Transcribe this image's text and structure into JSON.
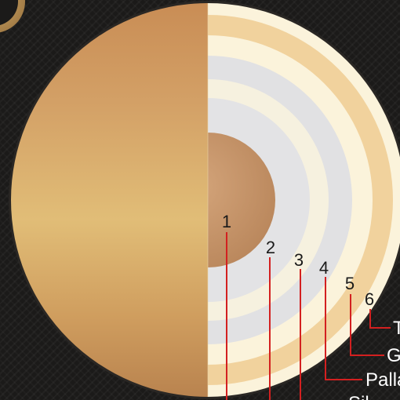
{
  "diagram": {
    "layers": [
      {
        "number": "1",
        "label": ""
      },
      {
        "number": "2",
        "label": ""
      },
      {
        "number": "3",
        "label": ""
      },
      {
        "number": "4",
        "label": "Palla"
      },
      {
        "number": "5",
        "label": "G"
      },
      {
        "number": "6",
        "label": "T"
      }
    ],
    "partial_bottom_label": "Sil",
    "colors": {
      "background": "#1b1a19",
      "leader_line": "#d32020",
      "gold_outer": "#f1d29d",
      "cream_ring": "#fbf3db",
      "silver_ring": "#e1e1e3",
      "core": "#c7956a"
    }
  }
}
